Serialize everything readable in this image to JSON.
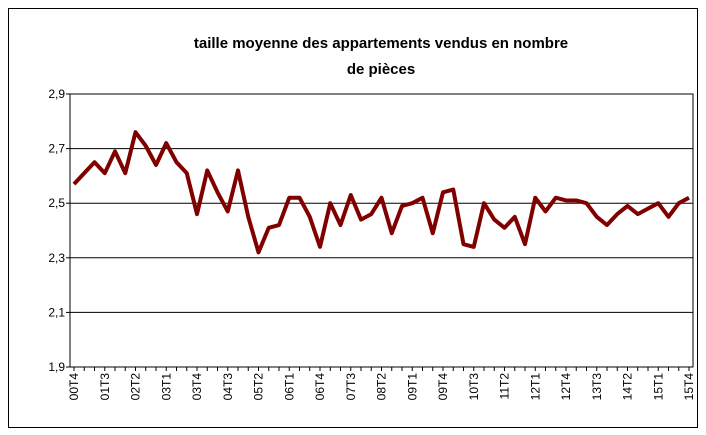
{
  "chart_data": {
    "type": "line",
    "title": [
      "taille moyenne des appartements vendus en nombre",
      "de pièces"
    ],
    "categories": [
      "00T4",
      null,
      null,
      "01T3",
      null,
      null,
      "02T2",
      null,
      null,
      "03T1",
      null,
      null,
      "03T4",
      null,
      null,
      "04T3",
      null,
      null,
      "05T2",
      null,
      null,
      "06T1",
      null,
      null,
      "06T4",
      null,
      null,
      "07T3",
      null,
      null,
      "08T2",
      null,
      null,
      "09T1",
      null,
      null,
      "09T4",
      null,
      null,
      "10T3",
      null,
      null,
      "11T2",
      null,
      null,
      "12T1",
      null,
      null,
      "12T4",
      null,
      null,
      "13T3",
      null,
      null,
      "14T2",
      null,
      null,
      "15T1",
      null,
      null,
      "15T4"
    ],
    "series": [
      {
        "color": "#800000",
        "values": [
          2.57,
          2.61,
          2.65,
          2.61,
          2.69,
          2.61,
          2.76,
          2.71,
          2.64,
          2.72,
          2.65,
          2.61,
          2.46,
          2.62,
          2.54,
          2.47,
          2.62,
          2.45,
          2.32,
          2.41,
          2.42,
          2.52,
          2.52,
          2.45,
          2.34,
          2.5,
          2.42,
          2.53,
          2.44,
          2.46,
          2.52,
          2.39,
          2.49,
          2.5,
          2.52,
          2.39,
          2.54,
          2.55,
          2.35,
          2.34,
          2.5,
          2.44,
          2.41,
          2.45,
          2.35,
          2.52,
          2.47,
          2.52,
          2.51,
          2.51,
          2.5,
          2.45,
          2.42,
          2.46,
          2.49,
          2.46,
          2.48,
          2.5,
          2.45,
          2.5,
          2.52
        ]
      }
    ],
    "ylim": [
      1.9,
      2.9
    ],
    "yticks": [
      {
        "value": 1.9,
        "label": "1,9"
      },
      {
        "value": 2.1,
        "label": "2,1"
      },
      {
        "value": 2.3,
        "label": "2,3"
      },
      {
        "value": 2.5,
        "label": "2,5"
      },
      {
        "value": 2.7,
        "label": "2,7"
      },
      {
        "value": 2.9,
        "label": "2,9"
      }
    ],
    "grid": true
  }
}
